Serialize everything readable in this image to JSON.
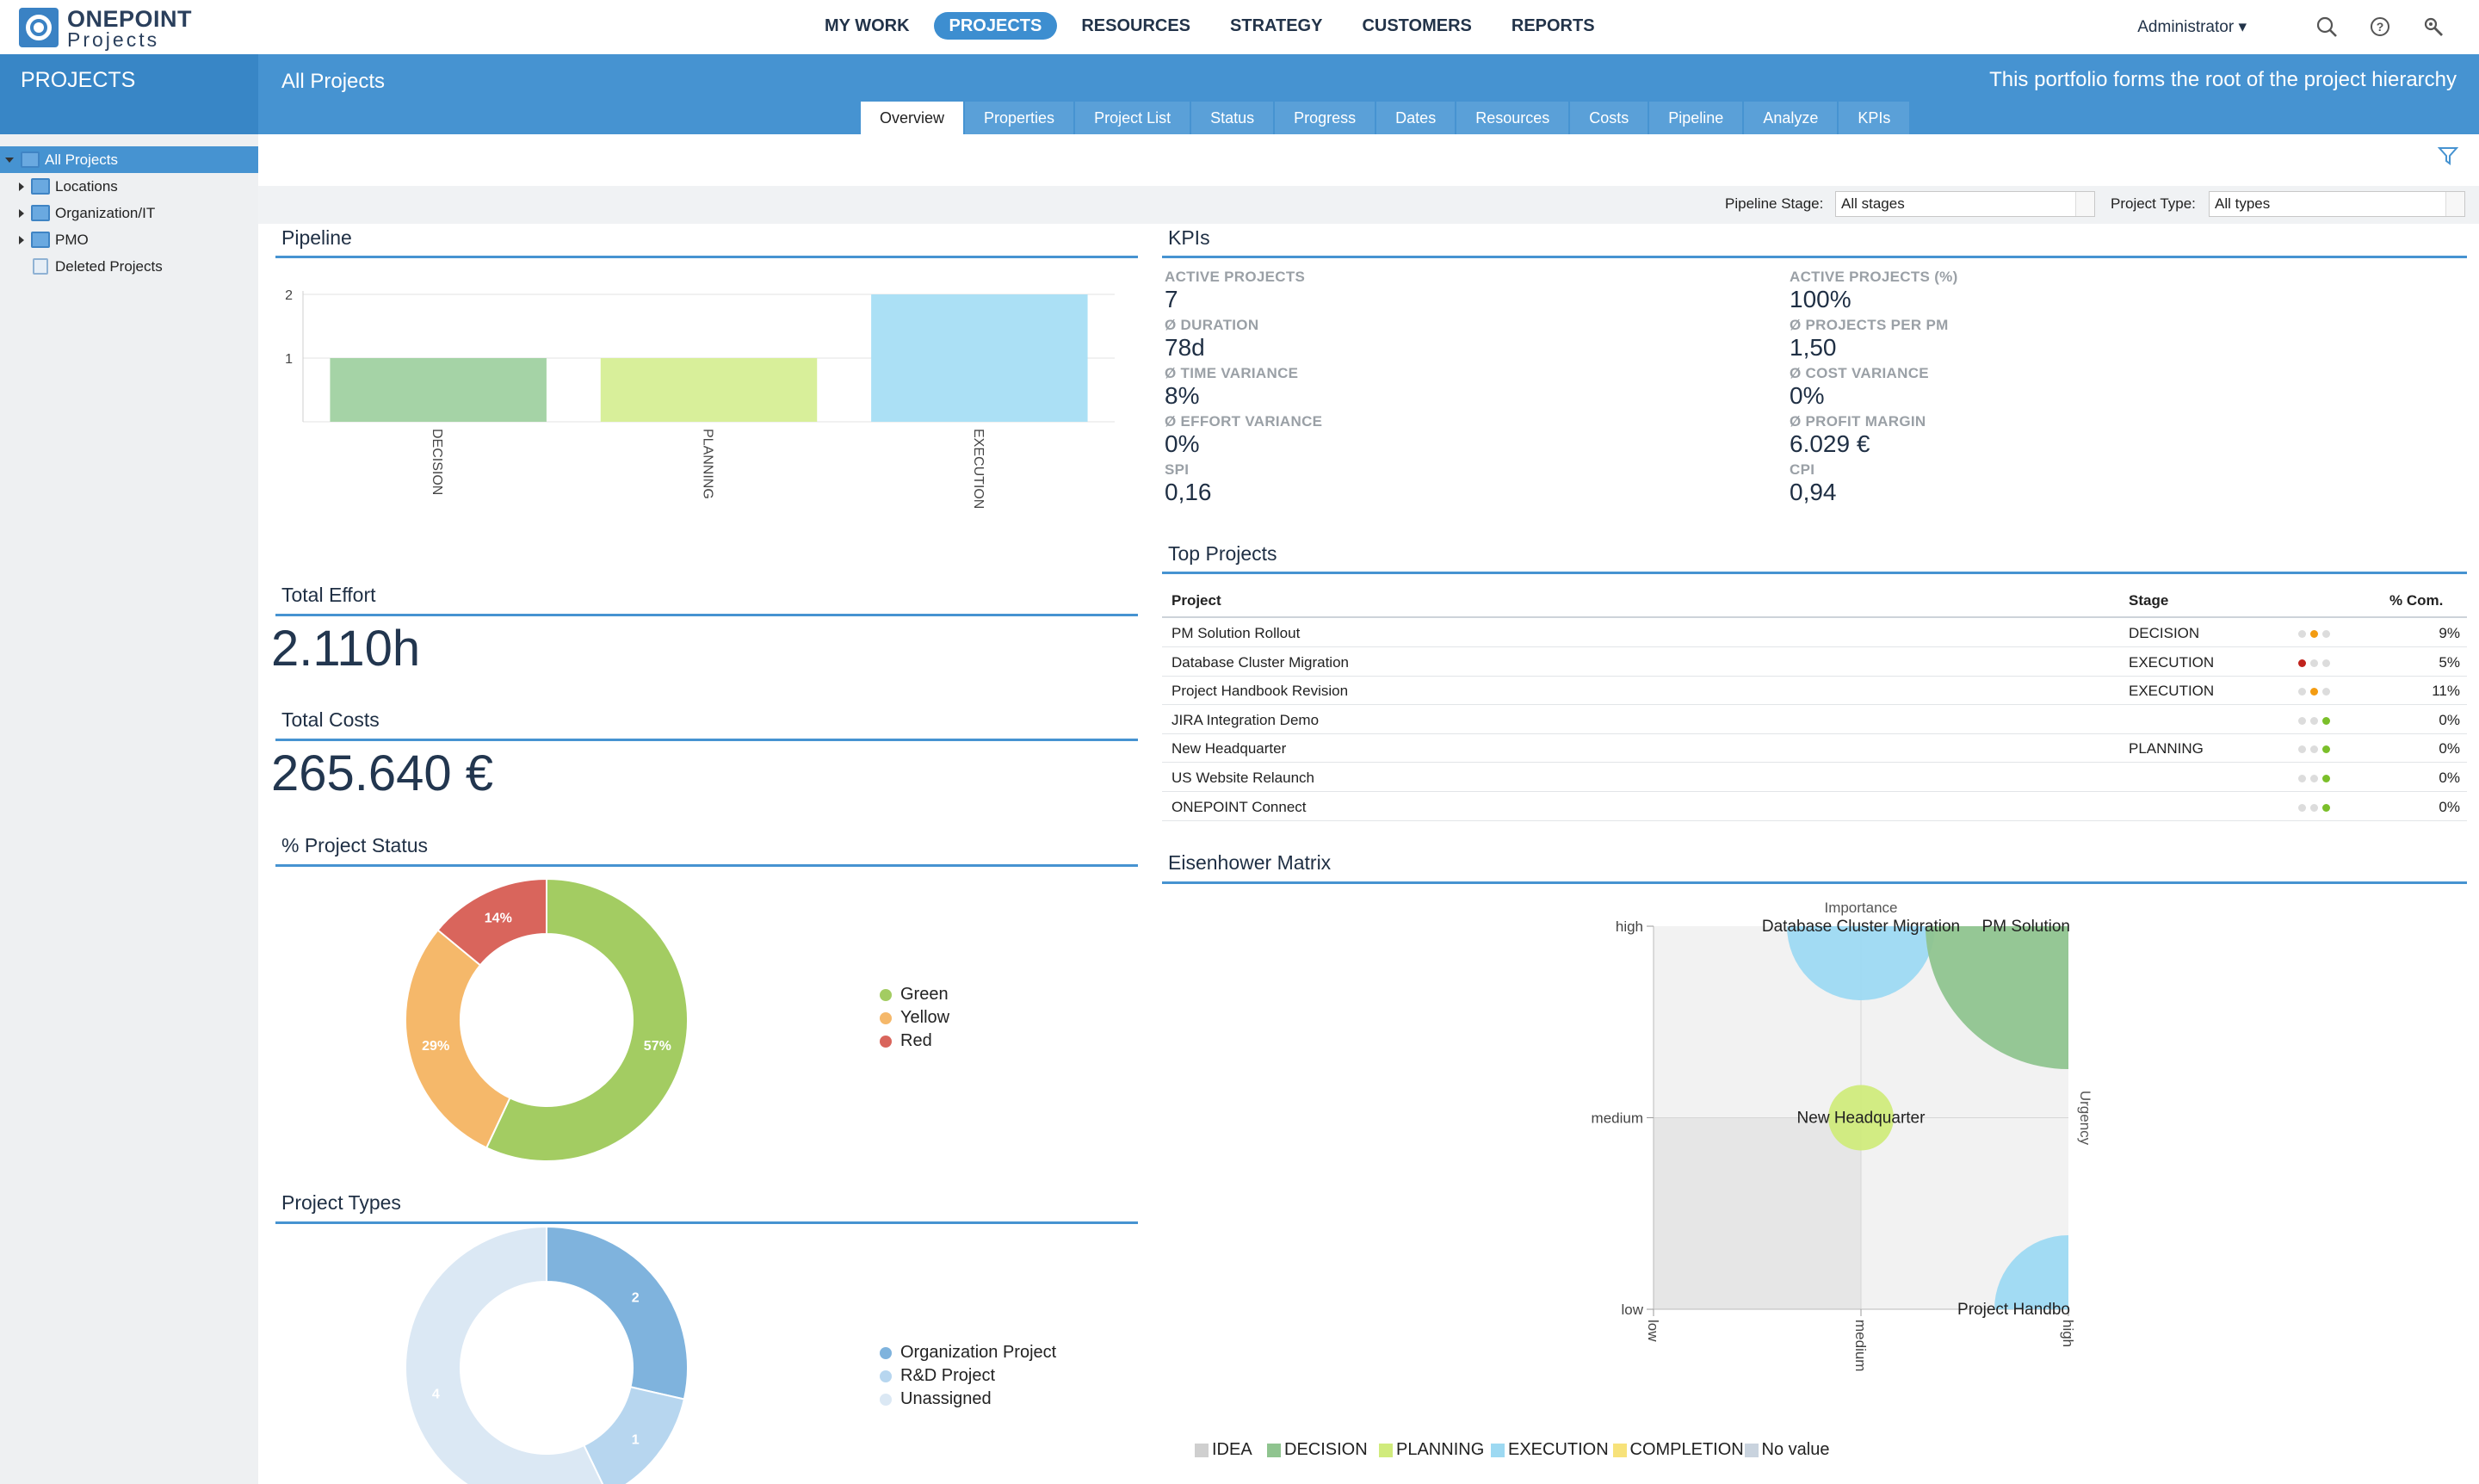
{
  "app": {
    "logo_line1": "ONEPOINT",
    "logo_line2": "Projects"
  },
  "nav": {
    "items": [
      "MY WORK",
      "PROJECTS",
      "RESOURCES",
      "STRATEGY",
      "CUSTOMERS",
      "REPORTS"
    ],
    "active": "PROJECTS",
    "user": "Administrator ▾"
  },
  "header": {
    "section": "PROJECTS",
    "title": "All Projects",
    "description": "This portfolio forms the root of the project hierarchy",
    "tabs": [
      "Overview",
      "Properties",
      "Project List",
      "Status",
      "Progress",
      "Dates",
      "Resources",
      "Costs",
      "Pipeline",
      "Analyze",
      "KPIs"
    ],
    "active_tab": "Overview"
  },
  "sidebar": {
    "items": [
      {
        "label": "All Projects",
        "selected": true,
        "expanded": true
      },
      {
        "label": "Locations",
        "selected": false
      },
      {
        "label": "Organization/IT",
        "selected": false
      },
      {
        "label": "PMO",
        "selected": false
      },
      {
        "label": "Deleted Projects",
        "selected": false
      }
    ]
  },
  "filters": {
    "pipeline_label": "Pipeline Stage:",
    "pipeline_value": "All stages",
    "type_label": "Project Type:",
    "type_value": "All types"
  },
  "panels": {
    "pipeline": "Pipeline",
    "kpis": "KPIs",
    "total_effort": "Total Effort",
    "total_costs": "Total Costs",
    "project_status": "% Project Status",
    "project_types": "Project Types",
    "top_projects": "Top Projects",
    "eisenhower": "Eisenhower Matrix"
  },
  "totals": {
    "effort": "2.110h",
    "costs": "265.640 €"
  },
  "kpis": [
    {
      "label": "ACTIVE PROJECTS",
      "value": "7"
    },
    {
      "label": "ACTIVE PROJECTS (%)",
      "value": "100%"
    },
    {
      "label": "Ø DURATION",
      "value": "78d"
    },
    {
      "label": "Ø PROJECTS PER PM",
      "value": "1,50"
    },
    {
      "label": "Ø TIME VARIANCE",
      "value": "8%"
    },
    {
      "label": "Ø COST VARIANCE",
      "value": "0%"
    },
    {
      "label": "Ø EFFORT VARIANCE",
      "value": "0%"
    },
    {
      "label": "Ø PROFIT MARGIN",
      "value": "6.029 €"
    },
    {
      "label": "SPI",
      "value": "0,16"
    },
    {
      "label": "CPI",
      "value": "0,94"
    }
  ],
  "top_projects": {
    "headers": [
      "Project",
      "Stage",
      "% Com."
    ],
    "rows": [
      {
        "project": "PM Solution Rollout",
        "stage": "DECISION",
        "status": "yellow",
        "pct": "9%"
      },
      {
        "project": "Database Cluster Migration",
        "stage": "EXECUTION",
        "status": "red",
        "pct": "5%"
      },
      {
        "project": "Project Handbook Revision",
        "stage": "EXECUTION",
        "status": "yellow",
        "pct": "11%"
      },
      {
        "project": "JIRA Integration Demo",
        "stage": "",
        "status": "green",
        "pct": "0%"
      },
      {
        "project": "New Headquarter",
        "stage": "PLANNING",
        "status": "green",
        "pct": "0%"
      },
      {
        "project": "US Website Relaunch",
        "stage": "",
        "status": "green",
        "pct": "0%"
      },
      {
        "project": "ONEPOINT Connect",
        "stage": "",
        "status": "green",
        "pct": "0%"
      }
    ]
  },
  "colors": {
    "accent": "#4693d1",
    "green": "#a3cc62",
    "yellow": "#f5b86a",
    "red": "#d9655c",
    "traffic_red": "#c0231d",
    "traffic_yellow": "#f39c12",
    "traffic_green": "#7bbf2a"
  },
  "chart_data": [
    {
      "type": "bar",
      "title": "Pipeline",
      "categories": [
        "DECISION",
        "PLANNING",
        "EXECUTION"
      ],
      "values": [
        1,
        1,
        2
      ],
      "colors": [
        "#a5d3a6",
        "#d8ef9a",
        "#abe0f5"
      ],
      "ylim": [
        0,
        2
      ],
      "yticks": [
        "1",
        "2"
      ],
      "grid": true
    },
    {
      "type": "pie",
      "title": "% Project Status",
      "labels": [
        "Green",
        "Yellow",
        "Red"
      ],
      "values": [
        57,
        29,
        14
      ],
      "value_labels": [
        "57%",
        "29%",
        "14%"
      ],
      "colors": [
        "#a3cc62",
        "#f5b86a",
        "#d9655c"
      ],
      "legend": "right"
    },
    {
      "type": "pie",
      "title": "Project Types",
      "labels": [
        "Organization Project",
        "R&D Project",
        "Unassigned"
      ],
      "values": [
        2,
        1,
        4
      ],
      "value_labels": [
        "2",
        "1",
        "4"
      ],
      "colors": [
        "#7fb3dd",
        "#b7d6ef",
        "#dbe8f4"
      ],
      "legend": "right"
    },
    {
      "type": "scatter",
      "title": "Eisenhower Matrix",
      "xlabel": "Urgency",
      "ylabel": "Importance",
      "x_categories": [
        "low",
        "medium",
        "high"
      ],
      "y_categories": [
        "low",
        "medium",
        "high"
      ],
      "points": [
        {
          "name": "Database Cluster Migration",
          "x": "medium",
          "y": "high",
          "stage": "EXECUTION"
        },
        {
          "name": "PM Solution",
          "x": "high",
          "y": "high",
          "stage": "DECISION"
        },
        {
          "name": "New Headquarter",
          "x": "medium",
          "y": "medium",
          "stage": "PLANNING"
        },
        {
          "name": "Project Handbo",
          "x": "high",
          "y": "low",
          "stage": "EXECUTION"
        }
      ],
      "legend": [
        {
          "label": "IDEA",
          "color": "#cfcfcf"
        },
        {
          "label": "DECISION",
          "color": "#8fc48f"
        },
        {
          "label": "PLANNING",
          "color": "#d0eb7c"
        },
        {
          "label": "EXECUTION",
          "color": "#9dd9f2"
        },
        {
          "label": "COMPLETION",
          "color": "#f7e27a"
        },
        {
          "label": "No value",
          "color": "#c9d3de"
        }
      ]
    }
  ]
}
